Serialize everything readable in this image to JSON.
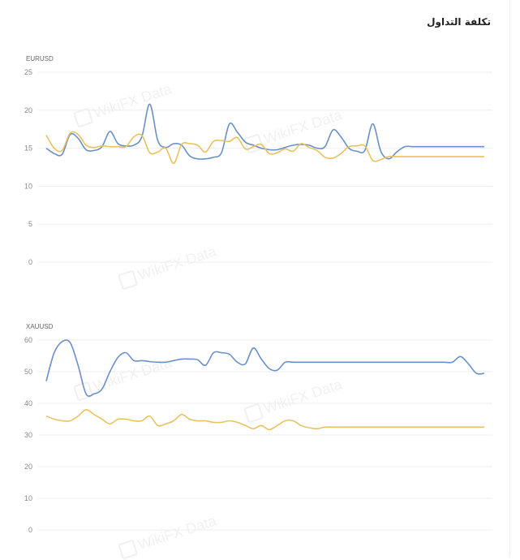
{
  "page": {
    "title": "تكلفة التداول"
  },
  "watermark": "WikiFX Data",
  "colors": {
    "blue": "#6a90c8",
    "yellow": "#e8c260",
    "grid": "#eeeeee"
  },
  "chart_data": [
    {
      "type": "line",
      "title": "EURUSD",
      "ylim": [
        0,
        25
      ],
      "yticks": [
        0,
        5,
        10,
        15,
        20,
        25
      ],
      "x": [
        0,
        1,
        2,
        3,
        4,
        5,
        6,
        7,
        8,
        9,
        10,
        11,
        12,
        13,
        14,
        15,
        16,
        17,
        18,
        19,
        20,
        21,
        22,
        23,
        24,
        25,
        26,
        27,
        28,
        29,
        30,
        31,
        32,
        33,
        34,
        35,
        36,
        37,
        38,
        39,
        40,
        41,
        42,
        43,
        44,
        45,
        46,
        47,
        48,
        49,
        50,
        51,
        52,
        53,
        54,
        55
      ],
      "series": [
        {
          "color": "#6a90c8",
          "values": [
            15.0,
            14.3,
            14.2,
            16.8,
            16.3,
            14.8,
            14.7,
            15.2,
            17.2,
            15.6,
            15.3,
            15.4,
            16.5,
            20.8,
            16.0,
            15.1,
            15.6,
            15.4,
            14.0,
            13.6,
            13.6,
            13.8,
            14.4,
            18.2,
            17.1,
            15.8,
            15.4,
            15.0,
            14.8,
            14.8,
            15.1,
            15.4,
            15.5,
            15.4,
            15.0,
            15.2,
            17.4,
            16.5,
            15.0,
            14.6,
            14.7,
            18.2,
            14.6,
            13.6,
            14.5,
            15.2,
            15.2,
            15.2,
            15.2,
            15.2,
            15.2,
            15.2,
            15.2,
            15.2,
            15.2,
            15.2
          ]
        },
        {
          "color": "#e8c260",
          "values": [
            16.7,
            15.0,
            14.7,
            17.0,
            16.8,
            15.4,
            15.1,
            15.3,
            15.2,
            15.2,
            15.2,
            16.5,
            16.7,
            14.4,
            14.5,
            15.0,
            13.0,
            15.5,
            15.6,
            15.4,
            14.5,
            15.9,
            16.0,
            15.9,
            16.4,
            14.9,
            15.2,
            15.5,
            14.3,
            14.4,
            14.9,
            14.6,
            15.6,
            15.1,
            14.7,
            13.8,
            13.7,
            14.3,
            15.2,
            15.3,
            15.3,
            13.4,
            13.5,
            13.9,
            13.9,
            13.9,
            13.9,
            13.9,
            13.9,
            13.9,
            13.9,
            13.9,
            13.9,
            13.9,
            13.9,
            13.9
          ]
        }
      ]
    },
    {
      "type": "line",
      "title": "XAUUSD",
      "ylim": [
        0,
        60
      ],
      "yticks": [
        0,
        10,
        20,
        30,
        40,
        50,
        60
      ],
      "x": [
        0,
        1,
        2,
        3,
        4,
        5,
        6,
        7,
        8,
        9,
        10,
        11,
        12,
        13,
        14,
        15,
        16,
        17,
        18,
        19,
        20,
        21,
        22,
        23,
        24,
        25,
        26,
        27,
        28,
        29,
        30,
        31,
        32,
        33,
        34,
        35,
        36,
        37,
        38,
        39,
        40,
        41,
        42,
        43,
        44,
        45,
        46,
        47,
        48,
        49,
        50,
        51,
        52,
        53,
        54,
        55
      ],
      "series": [
        {
          "color": "#6a90c8",
          "values": [
            47,
            56,
            59.5,
            59.2,
            52,
            43,
            43,
            44.5,
            50,
            54.5,
            56,
            53.5,
            53.5,
            53.2,
            53,
            53,
            53.5,
            54,
            54,
            53.8,
            52,
            56,
            56,
            55.5,
            53,
            52.5,
            57.5,
            54,
            51,
            50.5,
            53,
            53,
            53,
            53,
            53,
            53,
            53,
            53,
            53,
            53,
            53,
            53,
            53,
            53,
            53,
            53,
            53,
            53,
            53,
            53,
            53,
            53,
            54.8,
            52.5,
            49.5,
            49.5
          ]
        },
        {
          "color": "#e8c260",
          "values": [
            36,
            35,
            34.5,
            34.5,
            36,
            38,
            36.5,
            35,
            33.5,
            35,
            35,
            34.5,
            34.5,
            36,
            33,
            33.5,
            34.5,
            36.5,
            35,
            34.5,
            34.5,
            34,
            34,
            34.5,
            34,
            33,
            32,
            33,
            31.7,
            33,
            34.5,
            34.5,
            33,
            32.3,
            32,
            32.5,
            32.5,
            32.5,
            32.5,
            32.5,
            32.5,
            32.5,
            32.5,
            32.5,
            32.5,
            32.5,
            32.5,
            32.5,
            32.5,
            32.5,
            32.5,
            32.5,
            32.5,
            32.5,
            32.5,
            32.5
          ]
        }
      ]
    }
  ]
}
